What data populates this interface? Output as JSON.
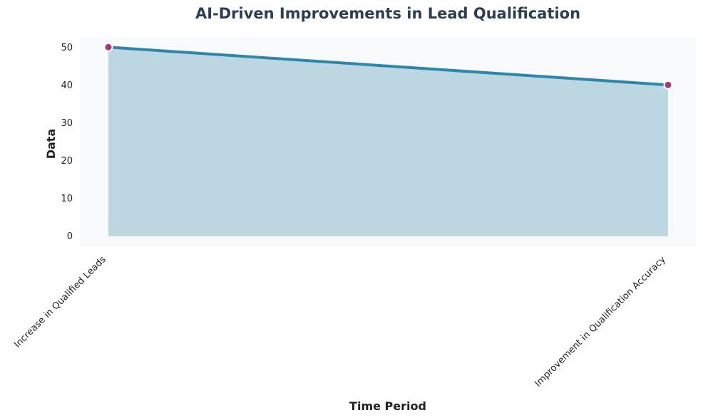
{
  "chart_data": {
    "type": "area",
    "title": "AI-Driven Improvements in Lead Qualification",
    "xlabel": "Time Period",
    "ylabel": "Data",
    "categories": [
      "Increase in Qualified Leads",
      "Improvement in Qualification Accuracy"
    ],
    "series": [
      {
        "values": [
          50,
          40
        ]
      }
    ],
    "ylim": [
      -2.5,
      52.5
    ],
    "yticks": [
      0,
      10,
      20,
      30,
      40,
      50
    ],
    "ytick_labels": [
      "0",
      "10",
      "20",
      "30",
      "40",
      "50"
    ],
    "grid": false,
    "legend": "none"
  },
  "colors": {
    "title": "#2c3e50",
    "plot_background": "#f7f9fb",
    "line": "#2e86ab",
    "fill": "#bcd6e2",
    "marker": "#a23b72",
    "marker_edge": "#ffffff",
    "axis_text": "#222222"
  }
}
